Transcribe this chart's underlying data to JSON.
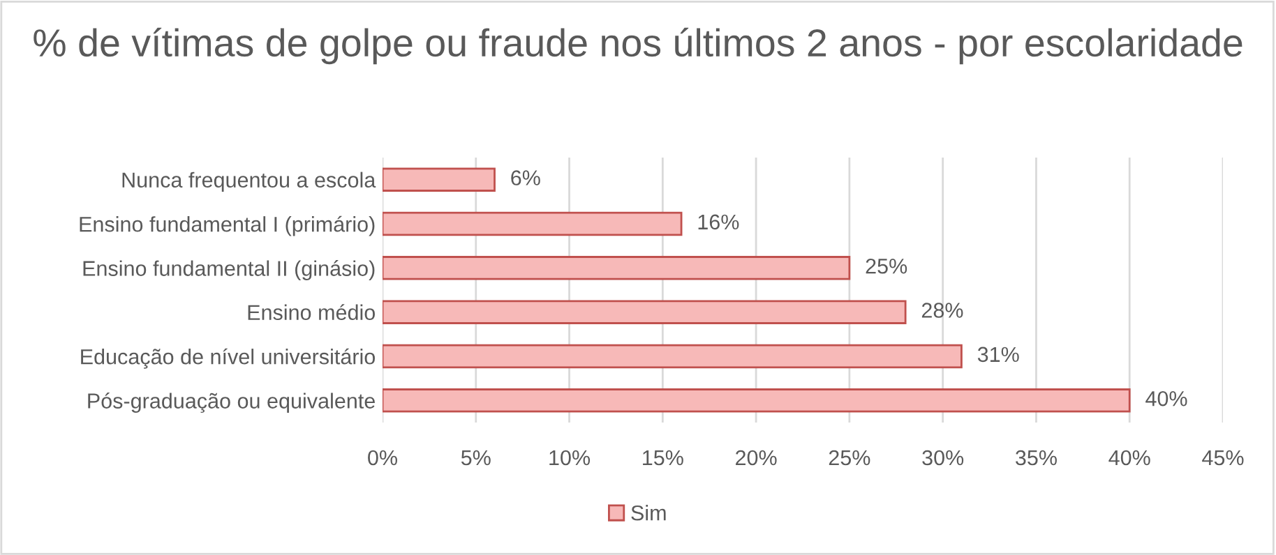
{
  "chart_data": {
    "type": "bar",
    "orientation": "horizontal",
    "title": "% de vítimas de golpe ou fraude nos últimos 2 anos - por escolaridade",
    "categories": [
      "Nunca frequentou a escola",
      "Ensino fundamental I (primário)",
      "Ensino fundamental II (ginásio)",
      "Ensino médio",
      "Educação de nível universitário",
      "Pós-graduação ou equivalente"
    ],
    "series": [
      {
        "name": "Sim",
        "color": "#f7b9b8",
        "values": [
          6,
          16,
          25,
          28,
          31,
          40
        ],
        "value_labels": [
          "6%",
          "16%",
          "25%",
          "28%",
          "31%",
          "40%"
        ]
      }
    ],
    "xlim": [
      0,
      45
    ],
    "xticks": [
      {
        "value": 0,
        "label": "0%"
      },
      {
        "value": 5,
        "label": "5%"
      },
      {
        "value": 10,
        "label": "10%"
      },
      {
        "value": 15,
        "label": "15%"
      },
      {
        "value": 20,
        "label": "20%"
      },
      {
        "value": 25,
        "label": "25%"
      },
      {
        "value": 30,
        "label": "30%"
      },
      {
        "value": 35,
        "label": "35%"
      },
      {
        "value": 40,
        "label": "40%"
      },
      {
        "value": 45,
        "label": "45%"
      }
    ],
    "grid": "x",
    "legend": "bottom"
  }
}
